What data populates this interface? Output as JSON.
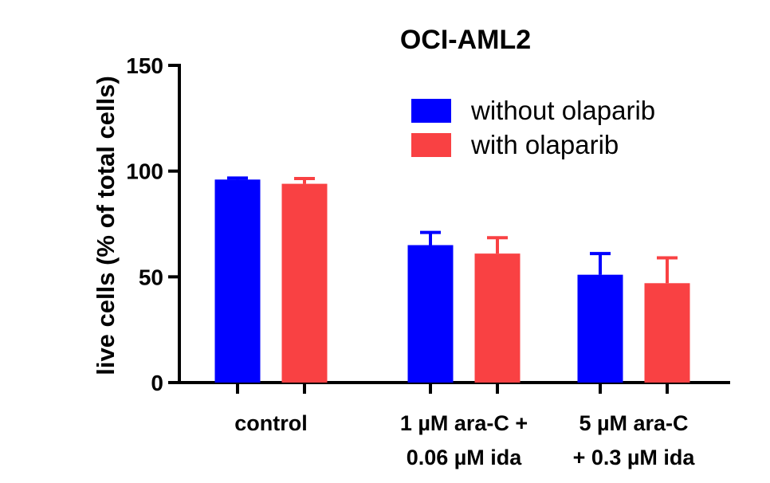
{
  "chart_data": {
    "type": "bar",
    "title": "OCI-AML2",
    "xlabel": "",
    "ylabel": "live cells (% of total cells)",
    "ylim": [
      0,
      150
    ],
    "yticks": [
      0,
      50,
      100,
      150
    ],
    "grid": false,
    "legend_position": "top-right",
    "categories": [
      [
        "control"
      ],
      [
        "1 µM ara-C +",
        "0.06 µM ida"
      ],
      [
        "5 µM ara-C",
        "+ 0.3 µM ida"
      ]
    ],
    "series": [
      {
        "name": "without olaparib",
        "color": "#0000ff",
        "values": [
          96,
          65,
          51
        ],
        "errors": [
          0.7,
          6,
          10
        ]
      },
      {
        "name": "with olaparib",
        "color": "#f94143",
        "values": [
          94,
          61,
          47
        ],
        "errors": [
          2.5,
          7.5,
          12
        ]
      }
    ]
  }
}
